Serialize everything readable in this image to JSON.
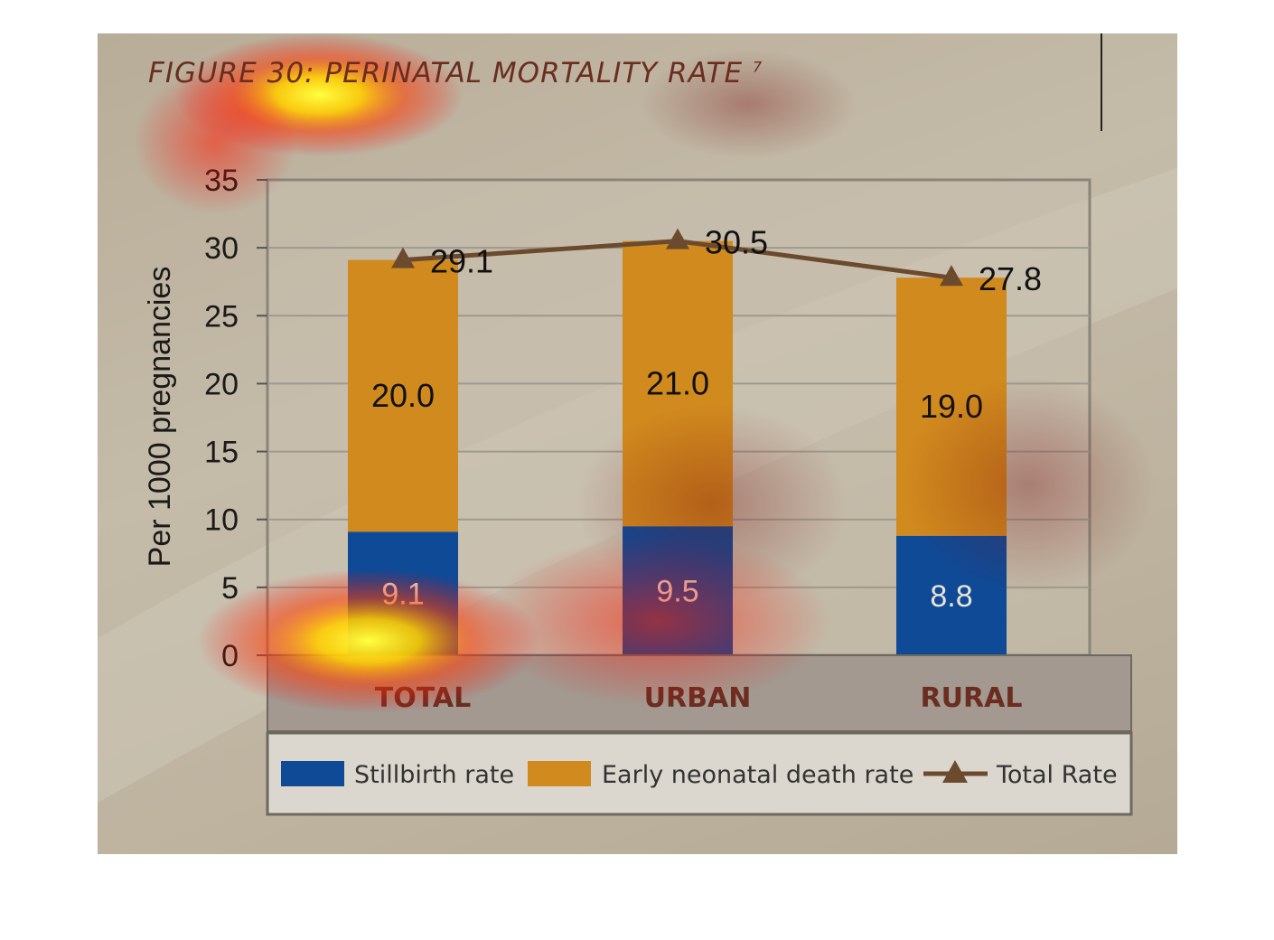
{
  "figure": {
    "title": "FIGURE 30: PERINATAL MORTALITY RATE",
    "superscript": "7"
  },
  "colors": {
    "stillbirth": "#0f4a96",
    "neonatal": "#d18a1e",
    "total_line": "#6b4a2e",
    "title": "#6b2d20",
    "grid": "#9f9a8e"
  },
  "chart_data": {
    "type": "bar",
    "stacked": true,
    "categories": [
      "TOTAL",
      "URBAN",
      "RURAL"
    ],
    "series": [
      {
        "name": "Stillbirth rate",
        "values": [
          9.1,
          9.5,
          8.8
        ]
      },
      {
        "name": "Early neonatal death rate",
        "values": [
          20.0,
          21.0,
          19.0
        ]
      }
    ],
    "line_series": {
      "name": "Total Rate",
      "values": [
        29.1,
        30.5,
        27.8
      ]
    },
    "value_labels": {
      "stillbirth": [
        "9.1",
        "9.5",
        "8.8"
      ],
      "neonatal": [
        "20.0",
        "21.0",
        "19.0"
      ],
      "total": [
        "29.1",
        "30.5",
        "27.8"
      ]
    },
    "ylabel": "Per 1000 pregnancies",
    "xlabel": "",
    "ylim": [
      0,
      35
    ],
    "yticks": [
      0,
      5,
      10,
      15,
      20,
      25,
      30,
      35
    ],
    "grid": true,
    "legend_position": "bottom"
  }
}
